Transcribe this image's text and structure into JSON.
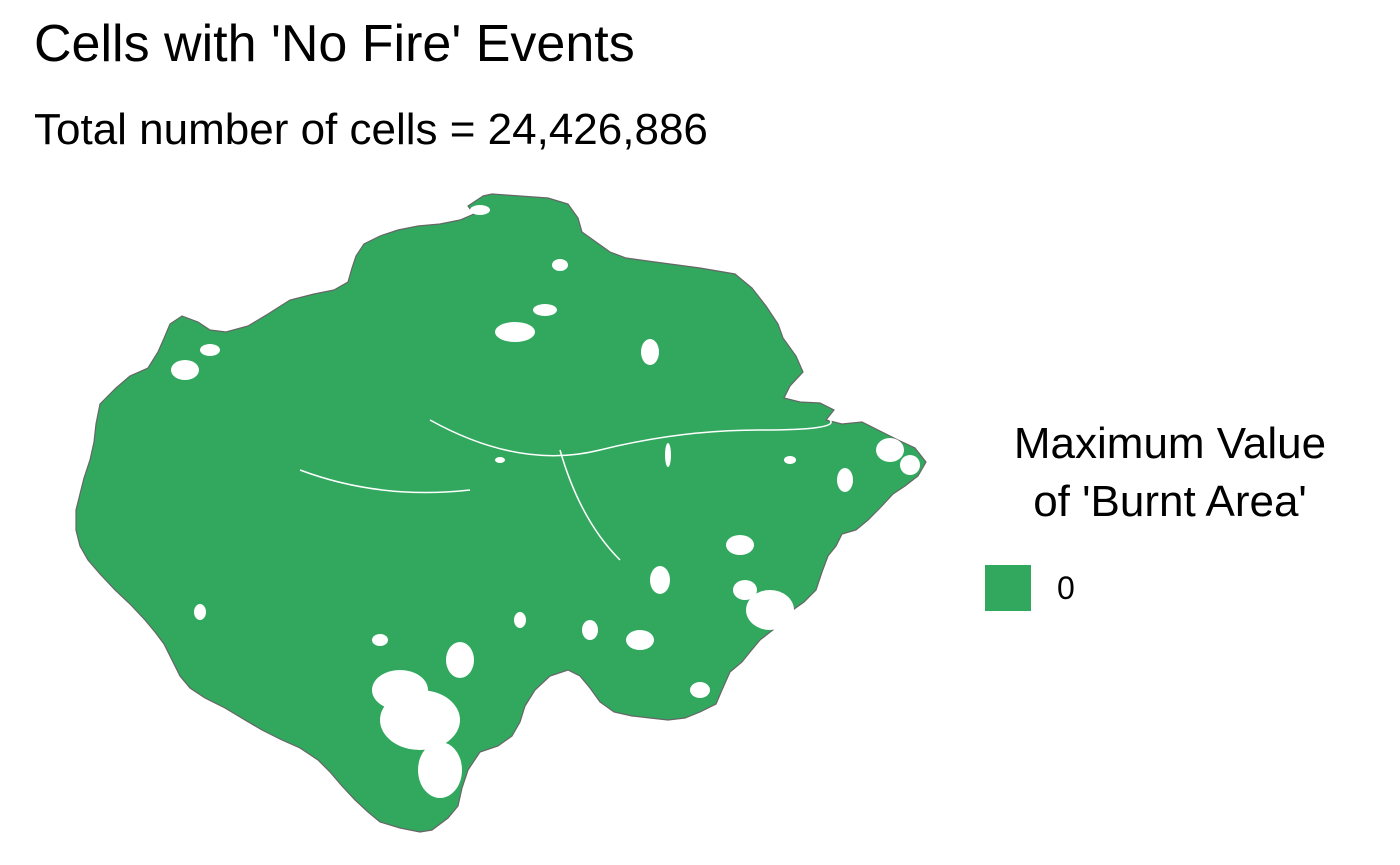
{
  "title": "Cells with 'No Fire' Events",
  "subtitle": "Total number of cells = 24,426,886",
  "map": {
    "fill_color": "#31a85e",
    "border_color": "#666666",
    "gap_color": "#ffffff"
  },
  "legend": {
    "title_line1": "Maximum Value",
    "title_line2": "of 'Burnt Area'",
    "items": [
      {
        "label": "0",
        "color": "#31a85e"
      }
    ]
  }
}
